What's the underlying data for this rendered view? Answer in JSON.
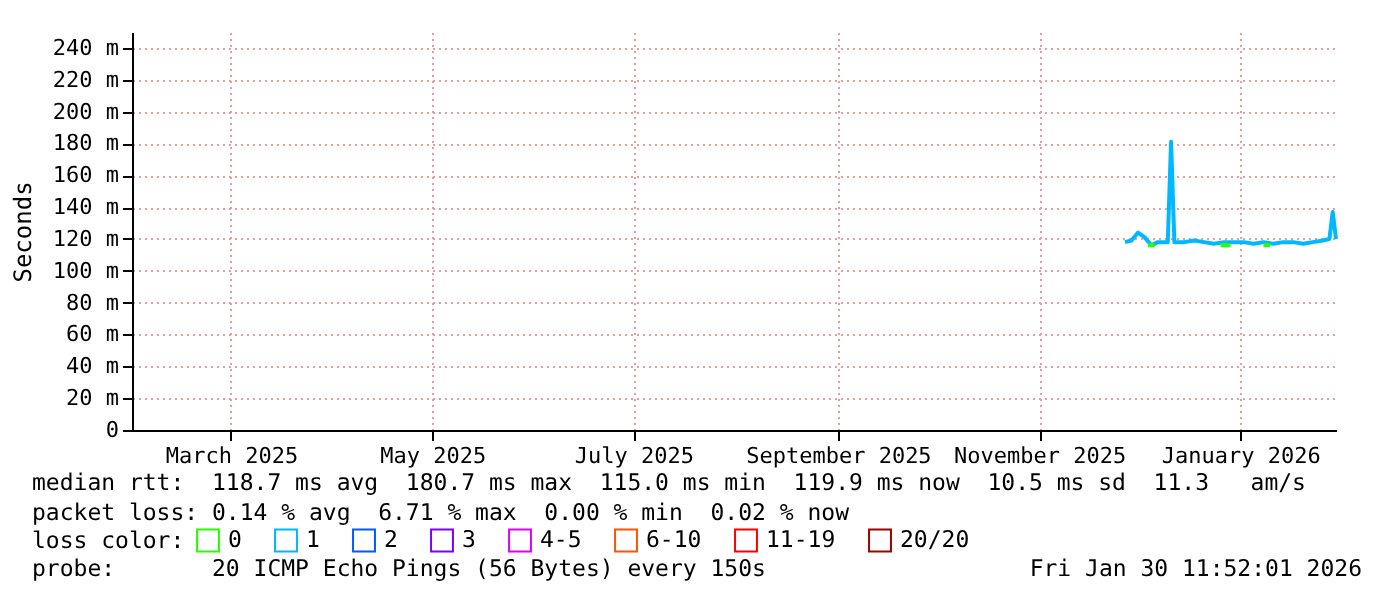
{
  "chart_data": {
    "type": "line",
    "ylabel": "Seconds",
    "legend_title": "loss color:",
    "legend": "bottom",
    "grid": true,
    "line_style": "solid",
    "marker": "none",
    "xlim": [
      "2025-01-30",
      "2026-01-30"
    ],
    "xticks": [
      {
        "value": "2025-03-01",
        "label": "March 2025"
      },
      {
        "value": "2025-05-01",
        "label": "May 2025"
      },
      {
        "value": "2025-07-01",
        "label": "July 2025"
      },
      {
        "value": "2025-09-01",
        "label": "September 2025"
      },
      {
        "value": "2025-11-01",
        "label": "November 2025"
      },
      {
        "value": "2026-01-01",
        "label": "January 2026"
      }
    ],
    "ylim": [
      0,
      250
    ],
    "yticks": [
      0,
      {
        "value": 20,
        "label": "20 m"
      },
      {
        "value": 40,
        "label": "40 m"
      },
      {
        "value": 60,
        "label": "60 m"
      },
      {
        "value": 80,
        "label": "80 m"
      },
      {
        "value": 100,
        "label": "100 m"
      },
      {
        "value": 120,
        "label": "120 m"
      },
      {
        "value": 140,
        "label": "140 m"
      },
      {
        "value": 160,
        "label": "160 m"
      },
      {
        "value": 180,
        "label": "180 m"
      },
      {
        "value": 200,
        "label": "200 m"
      },
      {
        "value": 220,
        "label": "220 m"
      },
      {
        "value": 240,
        "label": "240 m"
      }
    ],
    "series": [
      {
        "name": "0",
        "color": "#26ff00",
        "x": [
          "2025-12-04",
          "2025-12-06",
          "2025-12-07",
          "2025-12-26",
          "2025-12-29",
          "2025-12-30",
          "2026-01-08",
          "2026-01-10"
        ],
        "values": [
          116,
          116,
          null,
          116,
          116,
          null,
          116,
          116
        ]
      },
      {
        "name": "1",
        "color": "#00b8ff",
        "x": [
          "2025-11-27",
          "2025-11-29",
          "2025-12-01",
          "2025-12-03",
          "2025-12-05",
          "2025-12-07",
          "2025-12-10",
          "2025-12-11",
          "2025-12-12",
          "2025-12-15",
          "2025-12-18",
          "2025-12-21",
          "2025-12-24",
          "2025-12-27",
          "2025-12-30",
          "2026-01-02",
          "2026-01-05",
          "2026-01-08",
          "2026-01-11",
          "2026-01-14",
          "2026-01-17",
          "2026-01-20",
          "2026-01-23",
          "2026-01-26",
          "2026-01-28",
          "2026-01-29",
          "2026-01-30"
        ],
        "values": [
          118,
          119,
          124,
          121,
          116,
          118,
          118,
          181,
          118,
          118,
          119,
          118,
          117,
          118,
          118,
          118,
          117,
          118,
          117,
          118,
          118,
          117,
          118,
          119,
          120,
          137,
          120
        ]
      },
      {
        "name": "2",
        "color": "#0059ff"
      },
      {
        "name": "3",
        "color": "#7e00ff"
      },
      {
        "name": "4-5",
        "color": "#dd00ff"
      },
      {
        "name": "6-10",
        "color": "#ff5500"
      },
      {
        "name": "11-19",
        "color": "#ff0000"
      },
      {
        "name": "20/20",
        "color": "#a10000"
      }
    ],
    "annotations": [
      "median rtt:  118.7 ms avg  180.7 ms max  115.0 ms min  119.9 ms now  10.5 ms sd  11.3   am/s",
      "packet loss: 0.14 % avg  6.71 % max  0.00 % min  0.02 % now",
      "probe:       20 ICMP Echo Pings (56 Bytes) every 150s",
      "Fri Jan 30 11:52:01 2026"
    ]
  }
}
